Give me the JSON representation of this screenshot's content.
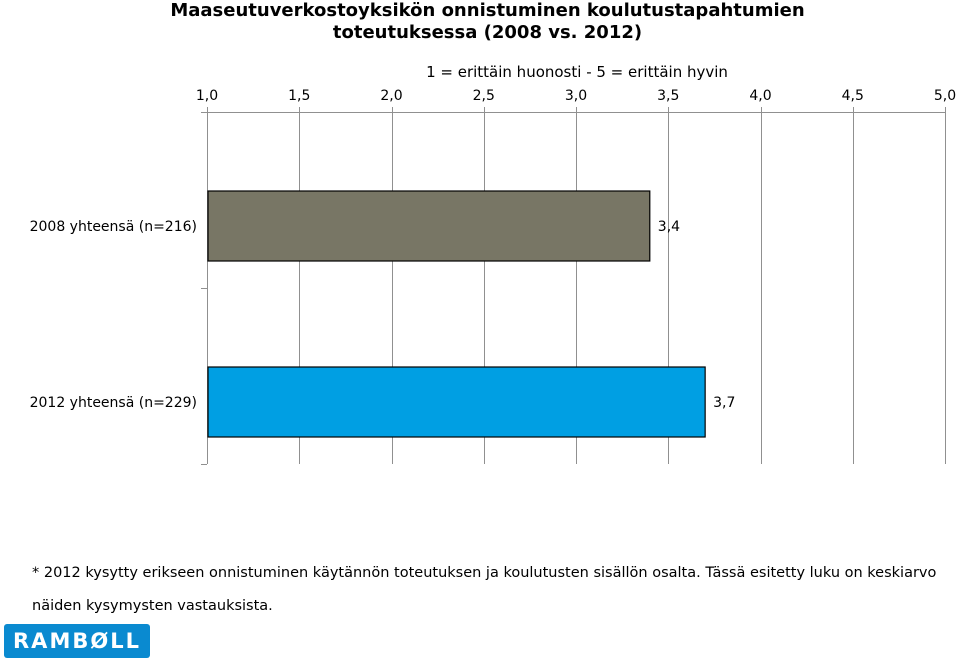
{
  "title_lines": [
    "Maaseutuverkostoyksikön onnistuminen koulutustapahtumien",
    "toteutuksessa (2008 vs. 2012)"
  ],
  "chart_data": {
    "type": "bar",
    "orientation": "horizontal",
    "subtitle": "1 = erittäin huonosti - 5 = erittäin hyvin",
    "categories": [
      "2008 yhteensä (n=216)",
      "2012 yhteensä (n=229)"
    ],
    "values": [
      3.4,
      3.7
    ],
    "value_labels": [
      "3,4",
      "3,7"
    ],
    "colors": [
      "#787665",
      "#009fe3"
    ],
    "xlim": [
      1.0,
      5.0
    ],
    "xticks": [
      1.0,
      1.5,
      2.0,
      2.5,
      3.0,
      3.5,
      4.0,
      4.5,
      5.0
    ],
    "xtick_labels": [
      "1,0",
      "1,5",
      "2,0",
      "2,5",
      "3,0",
      "3,5",
      "4,0",
      "4,5",
      "5,0"
    ],
    "x_axis_position": "top",
    "grid": true,
    "legend": "none"
  },
  "footnote": "* 2012 kysytty erikseen onnistuminen käytännön toteutuksen ja koulutusten sisällön osalta. Tässä esitetty luku on keskiarvo näiden kysymysten vastauksista.",
  "logo_text": "RAMBØLL"
}
